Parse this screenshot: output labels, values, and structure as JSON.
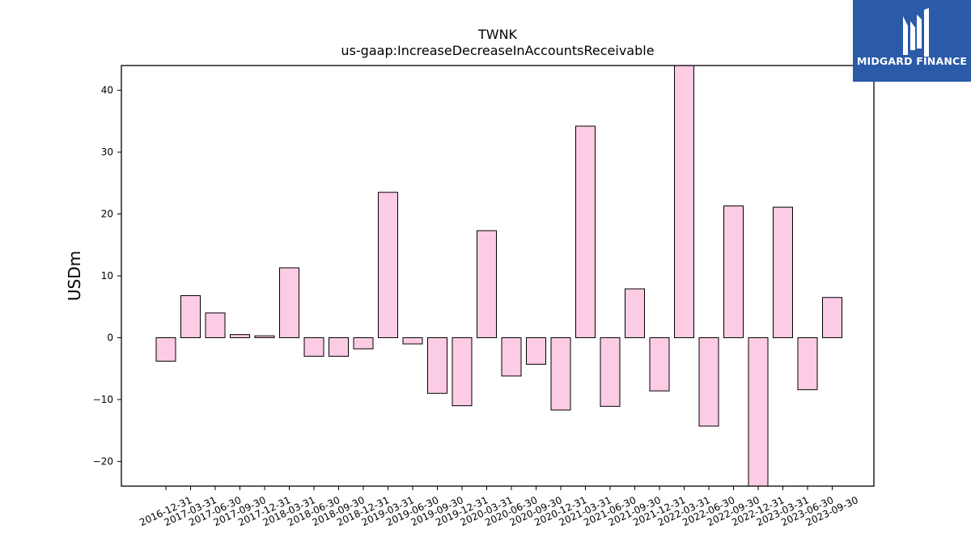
{
  "chart_data": {
    "type": "bar",
    "title": "TWNK",
    "subtitle": "us-gaap:IncreaseDecreaseInAccountsReceivable",
    "xlabel": "",
    "ylabel": "USDm",
    "ylim": [
      -24,
      44
    ],
    "yticks": [
      -20,
      -10,
      0,
      10,
      20,
      30,
      40
    ],
    "ytick_labels": [
      "−20",
      "−10",
      "0",
      "10",
      "20",
      "30",
      "40"
    ],
    "grid": false,
    "bar_color": "#fccbe4",
    "bar_edge_color": "#000000",
    "categories": [
      "2016-12-31",
      "2017-03-31",
      "2017-06-30",
      "2017-09-30",
      "2017-12-31",
      "2018-03-31",
      "2018-06-30",
      "2018-09-30",
      "2018-12-31",
      "2019-03-31",
      "2019-06-30",
      "2019-09-30",
      "2019-12-31",
      "2020-03-31",
      "2020-06-30",
      "2020-09-30",
      "2020-12-31",
      "2021-03-31",
      "2021-06-30",
      "2021-09-30",
      "2021-12-31",
      "2022-03-31",
      "2022-06-30",
      "2022-09-30",
      "2022-12-31",
      "2023-03-31",
      "2023-06-30",
      "2023-09-30"
    ],
    "values": [
      -3.8,
      6.8,
      4.0,
      0.5,
      0.3,
      11.3,
      -3.0,
      -3.0,
      -1.8,
      23.5,
      -1.0,
      -9.0,
      -11.0,
      17.3,
      -6.2,
      -4.3,
      -11.7,
      34.2,
      -11.1,
      7.9,
      -8.6,
      47.0,
      -14.3,
      21.3,
      -26.0,
      21.1,
      -8.4,
      6.5
    ]
  },
  "logo": {
    "text": "MIDGARD FINANCE",
    "bg_color": "#2b5aa8"
  }
}
